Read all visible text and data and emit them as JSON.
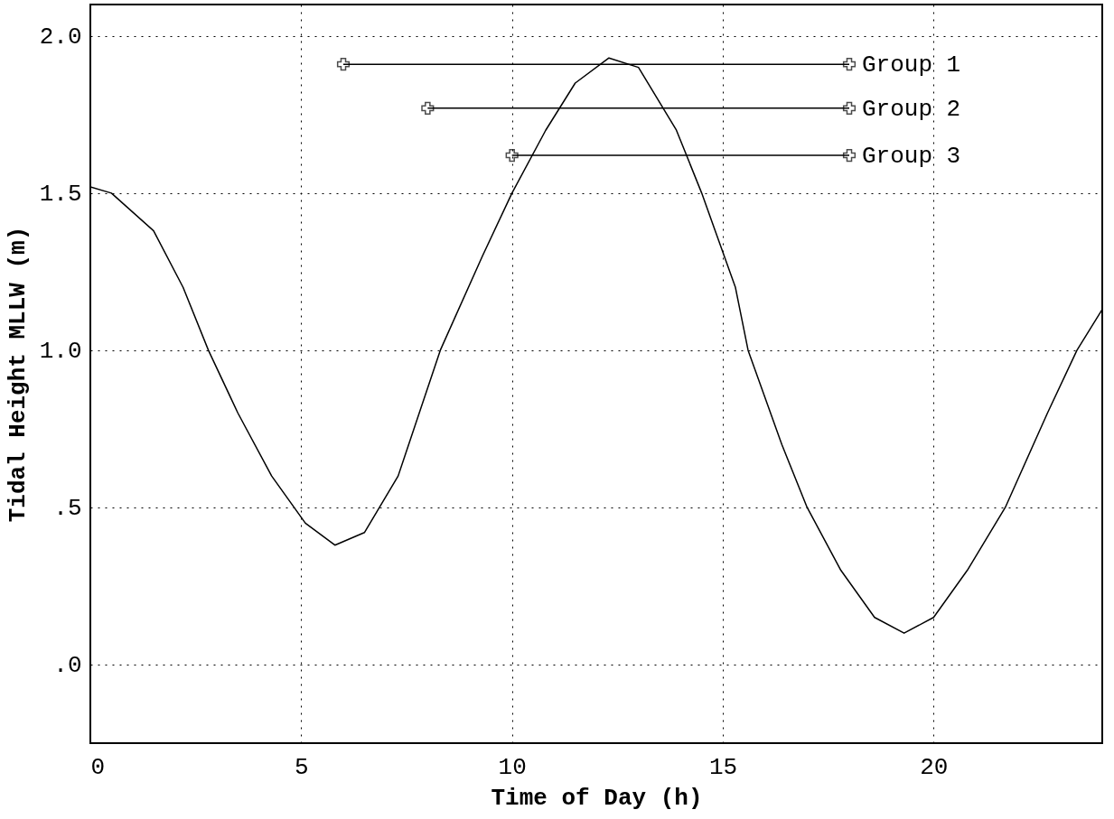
{
  "chart_data": {
    "type": "line",
    "xlabel": "Time of Day (h)",
    "ylabel": "Tidal Height MLLW (m)",
    "xlim": [
      0,
      24
    ],
    "ylim": [
      -0.25,
      2.1
    ],
    "xticks": [
      0,
      5,
      10,
      15,
      20
    ],
    "yticks": [
      {
        "value": 0,
        "label": ".0"
      },
      {
        "value": 0.5,
        "label": ".5"
      },
      {
        "value": 1.0,
        "label": "1.0"
      },
      {
        "value": 1.5,
        "label": "1.5"
      },
      {
        "value": 2.0,
        "label": "2.0"
      }
    ],
    "grid": true,
    "line_style": "solid",
    "series": [
      {
        "color": "#000000",
        "marker": "none",
        "x": [
          0,
          0.5,
          1.5,
          2.2,
          2.8,
          3.5,
          4.3,
          5.1,
          5.8,
          6.5,
          7.3,
          7.8,
          8.3,
          9.3,
          10,
          10.8,
          11.5,
          12.3,
          13,
          13.9,
          14.5,
          15.3,
          15.6,
          16.4,
          17,
          17.8,
          18.6,
          19.3,
          20,
          20.8,
          21.7,
          22.7,
          23.4,
          24
        ],
        "values": [
          1.52,
          1.5,
          1.38,
          1.2,
          1.0,
          0.8,
          0.6,
          0.45,
          0.38,
          0.42,
          0.6,
          0.8,
          1.0,
          1.3,
          1.5,
          1.7,
          1.85,
          1.93,
          1.9,
          1.7,
          1.5,
          1.2,
          1.0,
          0.7,
          0.5,
          0.3,
          0.15,
          0.1,
          0.15,
          0.3,
          0.5,
          0.8,
          1.0,
          1.13
        ]
      },
      {
        "name": "Group 1",
        "color": "#000000",
        "marker": "cross",
        "x": [
          6,
          18
        ],
        "values": [
          1.91,
          1.91
        ]
      },
      {
        "name": "Group 2",
        "color": "#000000",
        "marker": "cross",
        "x": [
          8,
          18
        ],
        "values": [
          1.77,
          1.77
        ]
      },
      {
        "name": "Group 3",
        "color": "#000000",
        "marker": "cross",
        "x": [
          10,
          18
        ],
        "values": [
          1.62,
          1.62
        ]
      }
    ]
  }
}
